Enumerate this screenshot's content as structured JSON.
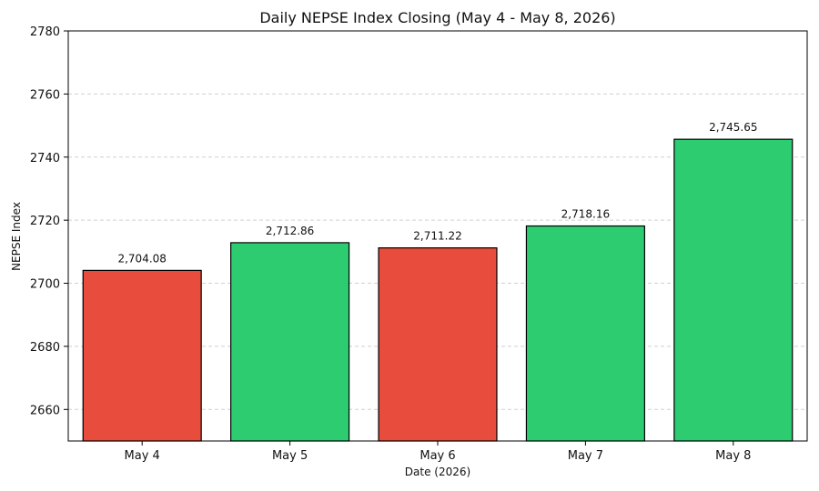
{
  "chart_data": {
    "type": "bar",
    "title": "Daily NEPSE Index Closing (May 4 - May 8, 2026)",
    "xlabel": "Date (2026)",
    "ylabel": "NEPSE Index",
    "categories": [
      "May 4",
      "May 5",
      "May 6",
      "May 7",
      "May 8"
    ],
    "values": [
      2704.08,
      2712.86,
      2711.22,
      2718.16,
      2745.65
    ],
    "value_labels": [
      "2,704.08",
      "2,712.86",
      "2,711.22",
      "2,718.16",
      "2,745.65"
    ],
    "bar_colors": [
      "#e74c3c",
      "#2ecc71",
      "#e74c3c",
      "#2ecc71",
      "#2ecc71"
    ],
    "ylim": [
      2650,
      2780
    ],
    "yticks": [
      2660,
      2680,
      2700,
      2720,
      2740,
      2760,
      2780
    ],
    "grid": "horizontal dashed",
    "legend": "none"
  }
}
